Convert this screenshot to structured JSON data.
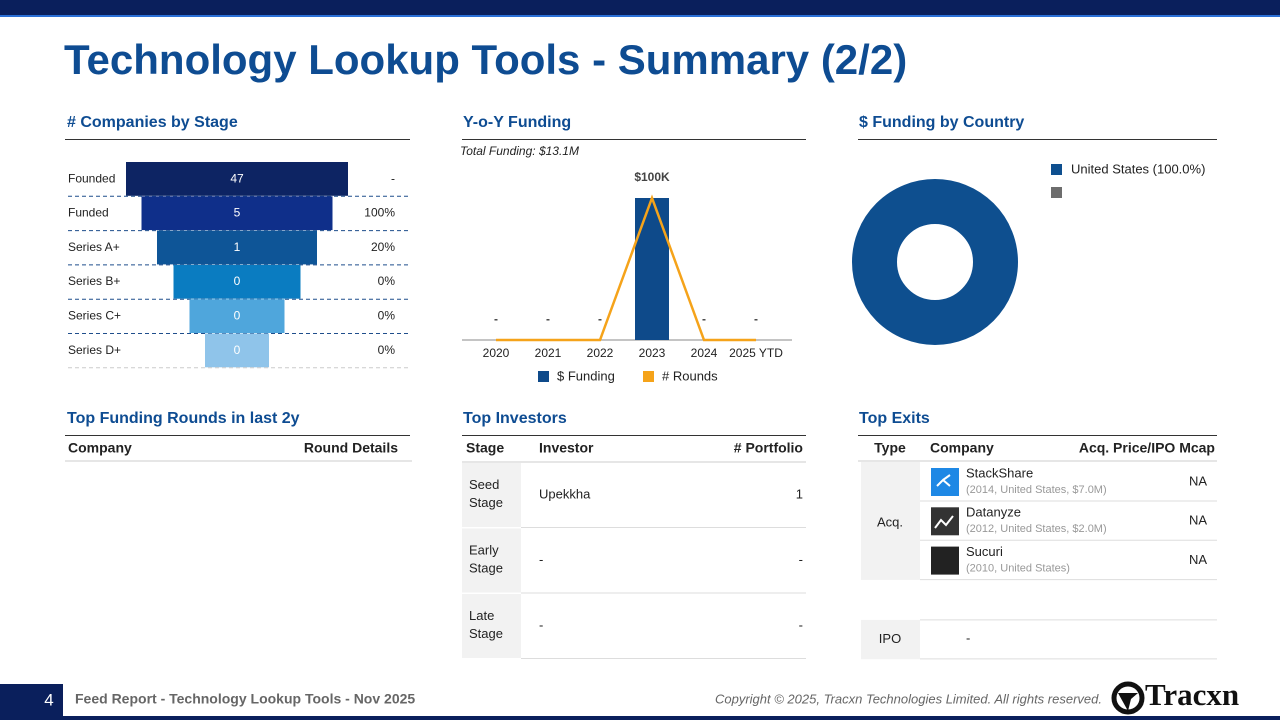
{
  "header": {
    "title": "Technology Lookup Tools - Summary (2/2)"
  },
  "stage_funnel": {
    "title": "# Companies by Stage",
    "stages": [
      "Founded",
      "Funded",
      "Series A+",
      "Series B+",
      "Series C+",
      "Series D+"
    ],
    "values": [
      47,
      5,
      1,
      0,
      0,
      0
    ],
    "conversion": [
      "-",
      "100%",
      "20%",
      "0%",
      "0%",
      "0%"
    ],
    "colors": [
      "#0d2463",
      "#0f2f8a",
      "#0e5597",
      "#0a7cc1",
      "#4fa6dc",
      "#8fc4ea"
    ]
  },
  "chart_data": [
    {
      "type": "bar",
      "title": "Y-o-Y Funding",
      "subtitle": "Total Funding: $13.1M",
      "categories": [
        "2020",
        "2021",
        "2022",
        "2023",
        "2024",
        "2025 YTD"
      ],
      "ylim": [
        0,
        100000
      ],
      "y2lim": [
        0,
        1
      ],
      "series": [
        {
          "name": "$ Funding",
          "color": "#0e4a8a",
          "values": [
            0,
            0,
            0,
            100000,
            0,
            0
          ],
          "value_labels": [
            "-",
            "-",
            "-",
            "$100K",
            "-",
            "-"
          ]
        },
        {
          "name": "# Rounds",
          "type": "line",
          "axis": "y2",
          "color": "#f5a31a",
          "values": [
            0,
            0,
            0,
            1,
            0,
            0
          ]
        }
      ]
    },
    {
      "type": "pie",
      "donut": true,
      "title": "$ Funding by Country",
      "categories": [
        "United States (100.0%)",
        null
      ],
      "values": [
        100,
        0
      ],
      "colors": [
        "#0e4f8f",
        "#6d6d6d"
      ]
    }
  ],
  "funding_rounds": {
    "title": "Top Funding Rounds in last 2y",
    "columns": [
      "Company",
      "Round Details"
    ],
    "rows": []
  },
  "investors": {
    "title": "Top Investors",
    "columns": [
      "Stage",
      "Investor",
      "# Portfolio"
    ],
    "rows": [
      [
        "Seed Stage",
        "Upekkha",
        1
      ],
      [
        "Early Stage",
        "-",
        "-"
      ],
      [
        "Late Stage",
        "-",
        "-"
      ]
    ]
  },
  "exits": {
    "title": "Top Exits",
    "columns": [
      "Type",
      "Company",
      "Acq. Price/IPO Mcap"
    ],
    "groups": [
      {
        "type": "Acq.",
        "items": [
          {
            "name": "StackShare",
            "detail": "(2014, United States, $7.0M)",
            "price": "NA"
          },
          {
            "name": "Datanyze",
            "detail": "(2012, United States, $2.0M)",
            "price": "NA"
          },
          {
            "name": "Sucuri",
            "detail": "(2010, United States)",
            "price": "NA"
          }
        ]
      },
      {
        "type": "IPO",
        "items": [
          {
            "name": "-"
          }
        ]
      }
    ]
  },
  "footer": {
    "page": "4",
    "report": "Feed Report - Technology Lookup Tools - Nov 2025",
    "copyright": "Copyright © 2025, Tracxn Technologies Limited. All rights reserved.",
    "logo": "Tracxn"
  }
}
